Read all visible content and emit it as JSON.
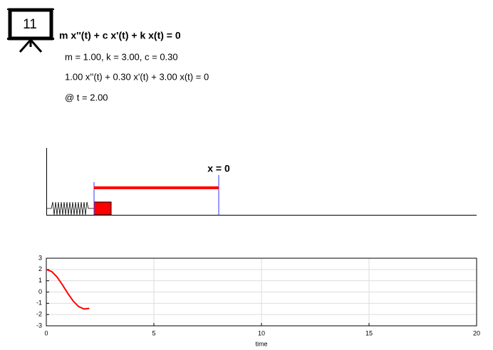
{
  "badge": "11",
  "equation": "m x''(t) + c x'(t) + k x(t) = 0",
  "parameters": "m = 1.00, k = 3.00, c = 0.30",
  "instance": "1.00 x''(t) + 0.30 x'(t) + 3.00 x(t) = 0",
  "time_label": "@ t = 2.00",
  "scene": {
    "equilibrium_label": "x = 0"
  },
  "chart_data": {
    "type": "line",
    "x": [
      0,
      0.25,
      0.5,
      0.75,
      1,
      1.25,
      1.5,
      1.75,
      2
    ],
    "values": [
      2,
      1.82,
      1.33,
      0.64,
      -0.12,
      -0.8,
      -1.29,
      -1.51,
      -1.45
    ],
    "color": "#ff0000",
    "xlabel": "time",
    "xlim": [
      0,
      20
    ],
    "xticks": [
      0,
      5,
      10,
      15,
      20
    ],
    "ylim": [
      -3,
      3
    ],
    "yticks": [
      -3,
      -2,
      -1,
      0,
      1,
      2,
      3
    ],
    "grid": true
  }
}
